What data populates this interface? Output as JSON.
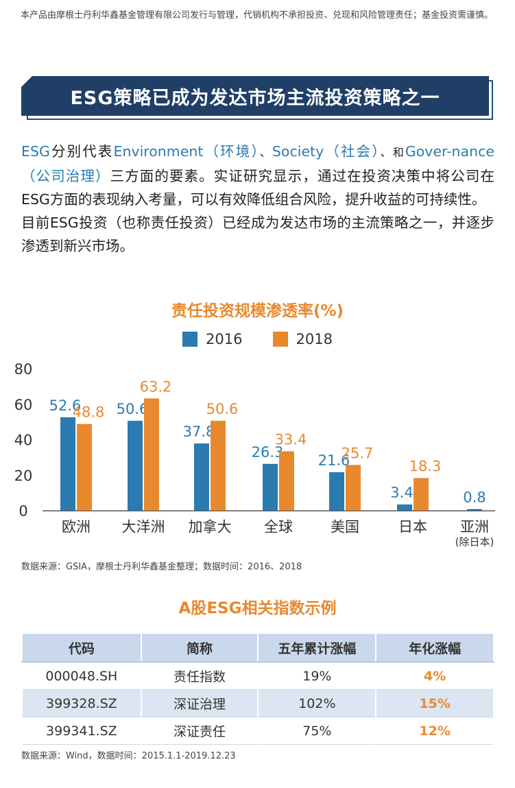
{
  "disclaimer": "本产品由摩根士丹利华鑫基金管理有限公司发行与管理，代销机构不承担投资、兑现和风险管理责任；基金投资需谨慎。",
  "banner_title": "ESG策略已成为发达市场主流投资策略之一",
  "intro": {
    "p1_a": "ESG",
    "p1_b": "分别代表",
    "p1_c": "Environment（环境）",
    "p1_d": "、",
    "p1_e": "Society（社会）",
    "p1_f": "、和",
    "p1_g": "Gover-nance（公司治理）",
    "p1_h": "三方面的要素。实证研究显示，通过在投资决策中将公司在ESG方面的表现纳入考量，可以有效降低组合风险，提升收益的可持续性。",
    "p2": "目前ESG投资（也称责任投资）已经成为发达市场的主流策略之一，并逐步渗透到新兴市场。"
  },
  "chart_data": {
    "type": "bar",
    "title": "责任投资规模渗透率(%)",
    "categories": [
      "欧洲",
      "大洋洲",
      "加拿大",
      "全球",
      "美国",
      "日本",
      "亚洲"
    ],
    "category_sublabels": [
      "",
      "",
      "",
      "",
      "",
      "",
      "(除日本)"
    ],
    "series": [
      {
        "name": "2016",
        "values": [
          52.6,
          50.6,
          37.8,
          26.3,
          21.6,
          3.4,
          0.8
        ]
      },
      {
        "name": "2018",
        "values": [
          48.8,
          63.2,
          50.6,
          33.4,
          25.7,
          18.3,
          null
        ]
      }
    ],
    "ylim": [
      0,
      80
    ],
    "yticks": [
      0,
      20,
      40,
      60,
      80
    ],
    "grid": false,
    "legend": "top",
    "colors": {
      "2016": "#2b7bb0",
      "2018": "#e8892e"
    }
  },
  "chart_source": "数据来源：GSIA，摩根士丹利华鑫基金整理；数据时间：2016、2018",
  "table": {
    "title": "A股ESG相关指数示例",
    "headers": [
      "代码",
      "简称",
      "五年累计涨幅",
      "年化涨幅"
    ],
    "rows": [
      [
        "000048.SH",
        "责任指数",
        "19%",
        "4%"
      ],
      [
        "399328.SZ",
        "深证治理",
        "102%",
        "15%"
      ],
      [
        "399341.SZ",
        "深证责任",
        "75%",
        "12%"
      ]
    ]
  },
  "table_source": "数据来源：Wind，数据时间：2015.1.1-2019.12.23"
}
